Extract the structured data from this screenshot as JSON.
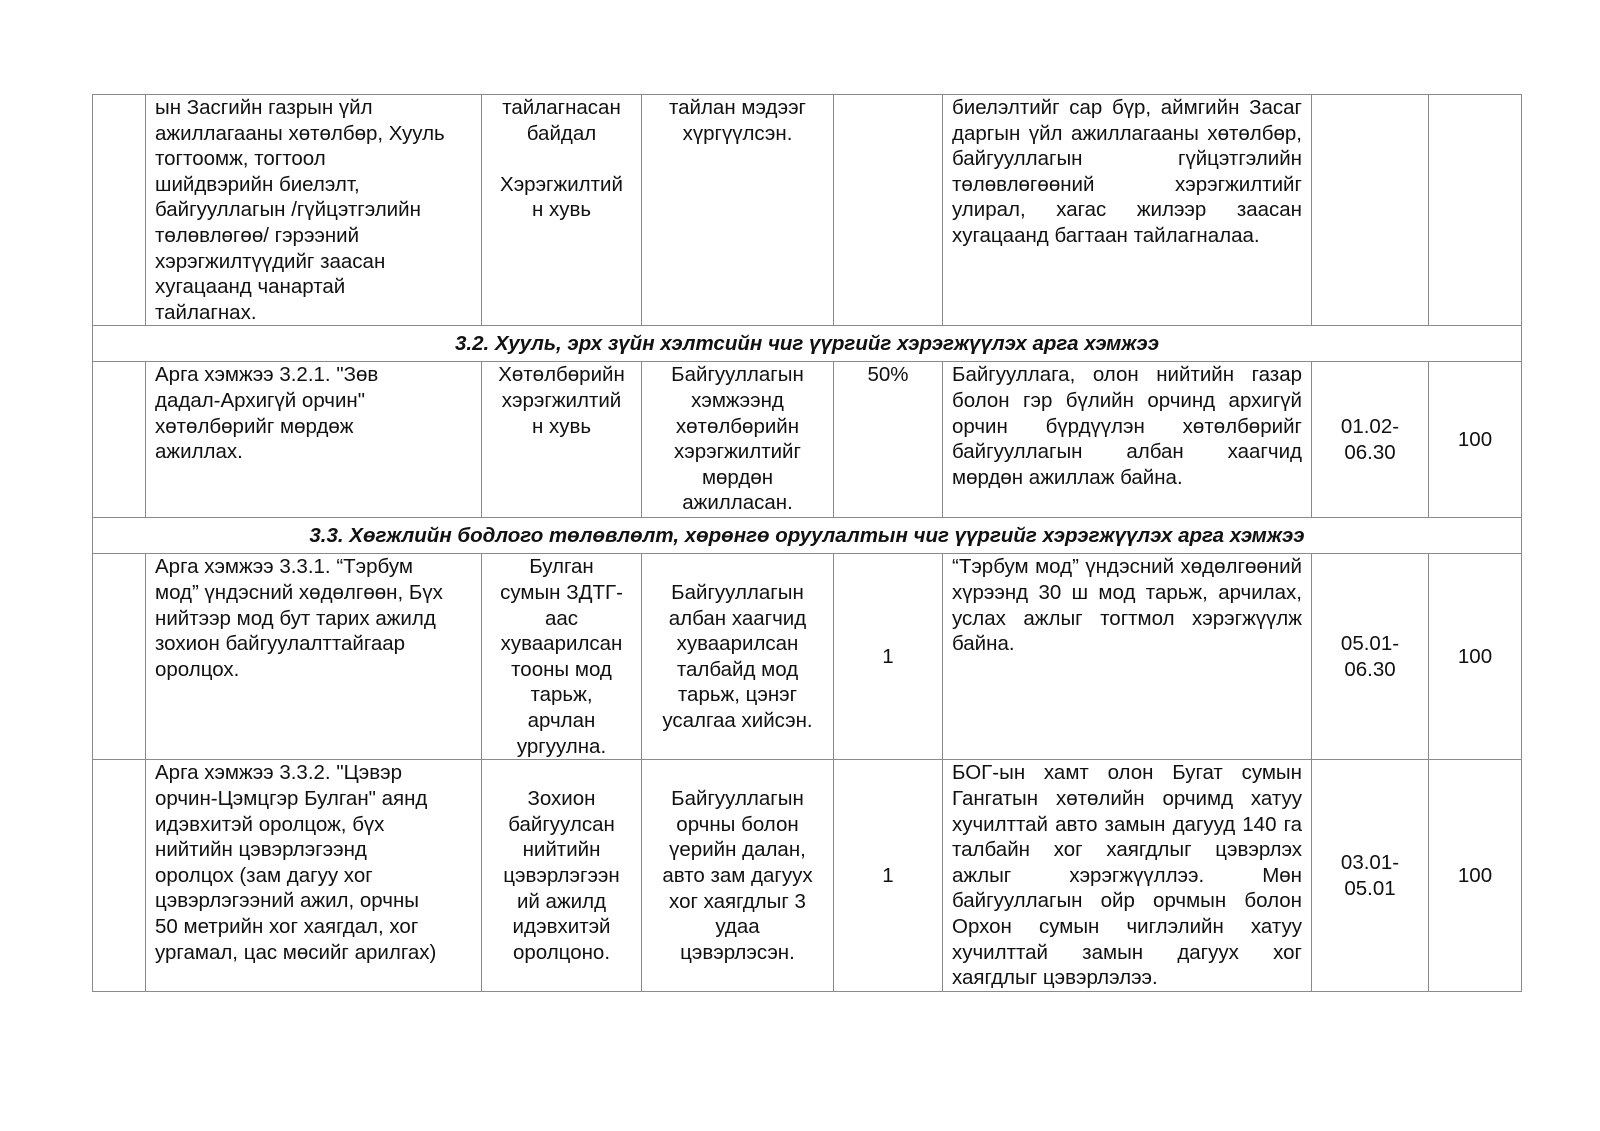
{
  "rows": [
    {
      "activity": "ын Засгийн газрын үйл\nажиллагааны хөтөлбөр, Хууль\nтогтоомж, тогтоол\nшийдвэрийн биелэлт,\nбайгууллагын /гүйцэтгэлийн\nтөлөвлөгөө/ гэрээний\nхэрэгжилтүүдийг заасан\nхугацаанд чанартай\nтайлагнах.",
      "indicator": "тайлагнасан\nбайдал\n\nХэрэгжилтий\nн хувь",
      "result": "тайлан мэдээг\nхүргүүлсэн.",
      "level": "",
      "report": "биелэлтийг сар бүр, аймгийн Засаг даргын үйл ажиллагааны хөтөлбөр, байгууллагын гүйцэтгэлийн төлөвлөгөөний хэрэгжилтийг улирал, хагас жилээр заасан хугацаанд багтаан тайлагналаа.",
      "period": "",
      "score": ""
    }
  ],
  "section_3_2": {
    "title": "3.2. Хууль, эрх зүйн хэлтсийн чиг үүргийг хэрэгжүүлэх арга хэмжээ",
    "rows": [
      {
        "activity": "Арга хэмжээ 3.2.1. \"Зөв\nдадал-Архигүй орчин\"\nхөтөлбөрийг мөрдөж\nажиллах.",
        "indicator": "Хөтөлбөрийн\nхэрэгжилтий\nн хувь",
        "result": "Байгууллагын\nхэмжээнд\nхөтөлбөрийн\nхэрэгжилтийг\nмөрдөн\nажилласан.",
        "level": "50%",
        "report": "Байгууллага, олон нийтийн газар болон гэр бүлийн орчинд архигүй орчин бүрдүүлэн хөтөлбөрийг байгууллагын албан хаагчид мөрдөн ажиллаж байна.",
        "period": "01.02-\n06.30",
        "score": "100"
      }
    ]
  },
  "section_3_3": {
    "title": "3.3. Хөгжлийн бодлого төлөвлөлт, хөрөнгө оруулалтын чиг үүргийг хэрэгжүүлэх арга хэмжээ",
    "rows": [
      {
        "activity": "Арга хэмжээ 3.3.1. “Тэрбум\nмод” үндэсний хөдөлгөөн, Бүх\nнийтээр мод бут тарих ажилд\nзохион байгуулалттайгаар\nоролцох.",
        "indicator": "Булган\nсумын ЗДТГ-\nаас\nхуваарилсан\nтооны мод\nтарьж,\nарчлан\nургуулна.",
        "result": "Байгууллагын\nалбан хаагчид\nхуваарилсан\nталбайд мод\nтарьж, цэнэг\nусалгаа хийсэн.",
        "level": "1",
        "report": "“Тэрбум мод” үндэсний хөдөлгөөний хүрээнд 30 ш мод тарьж, арчилах, услах ажлыг тогтмол хэрэгжүүлж байна.",
        "period": "05.01-\n06.30",
        "score": "100"
      },
      {
        "activity": "Арга хэмжээ 3.3.2. \"Цэвэр\nорчин-Цэмцгэр Булган\" аянд\nидэвхитэй оролцож, бүх\nнийтийн цэвэрлэгээнд\nоролцох (зам дагуу хог\nцэвэрлэгээний ажил, орчны\n50 метрийн хог хаягдал, хог\nургамал, цас мөсийг арилгах)",
        "indicator": "Зохион\nбайгуулсан\nнийтийн\nцэвэрлэгээн\nий ажилд\nидэвхитэй\nоролцоно.",
        "result": "Байгууллагын\nорчны болон\nүерийн далан,\nавто зам дагуух\nхог хаягдлыг 3\nудаа\nцэвэрлэсэн.",
        "level": "1",
        "report": "БОГ-ын хамт олон Бугат сумын Гангатын хөтөлийн орчимд хатуу хучилттай авто замын дагууд 140 га талбайн хог хаягдлыг цэвэрлэх ажлыг хэрэгжүүллээ. Мөн байгууллагын ойр орчмын болон Орхон сумын чиглэлийн хатуу хучилттай замын дагуух хог хаягдлыг цэвэрлэлээ.",
        "period": "03.01-\n05.01",
        "score": "100"
      }
    ]
  }
}
